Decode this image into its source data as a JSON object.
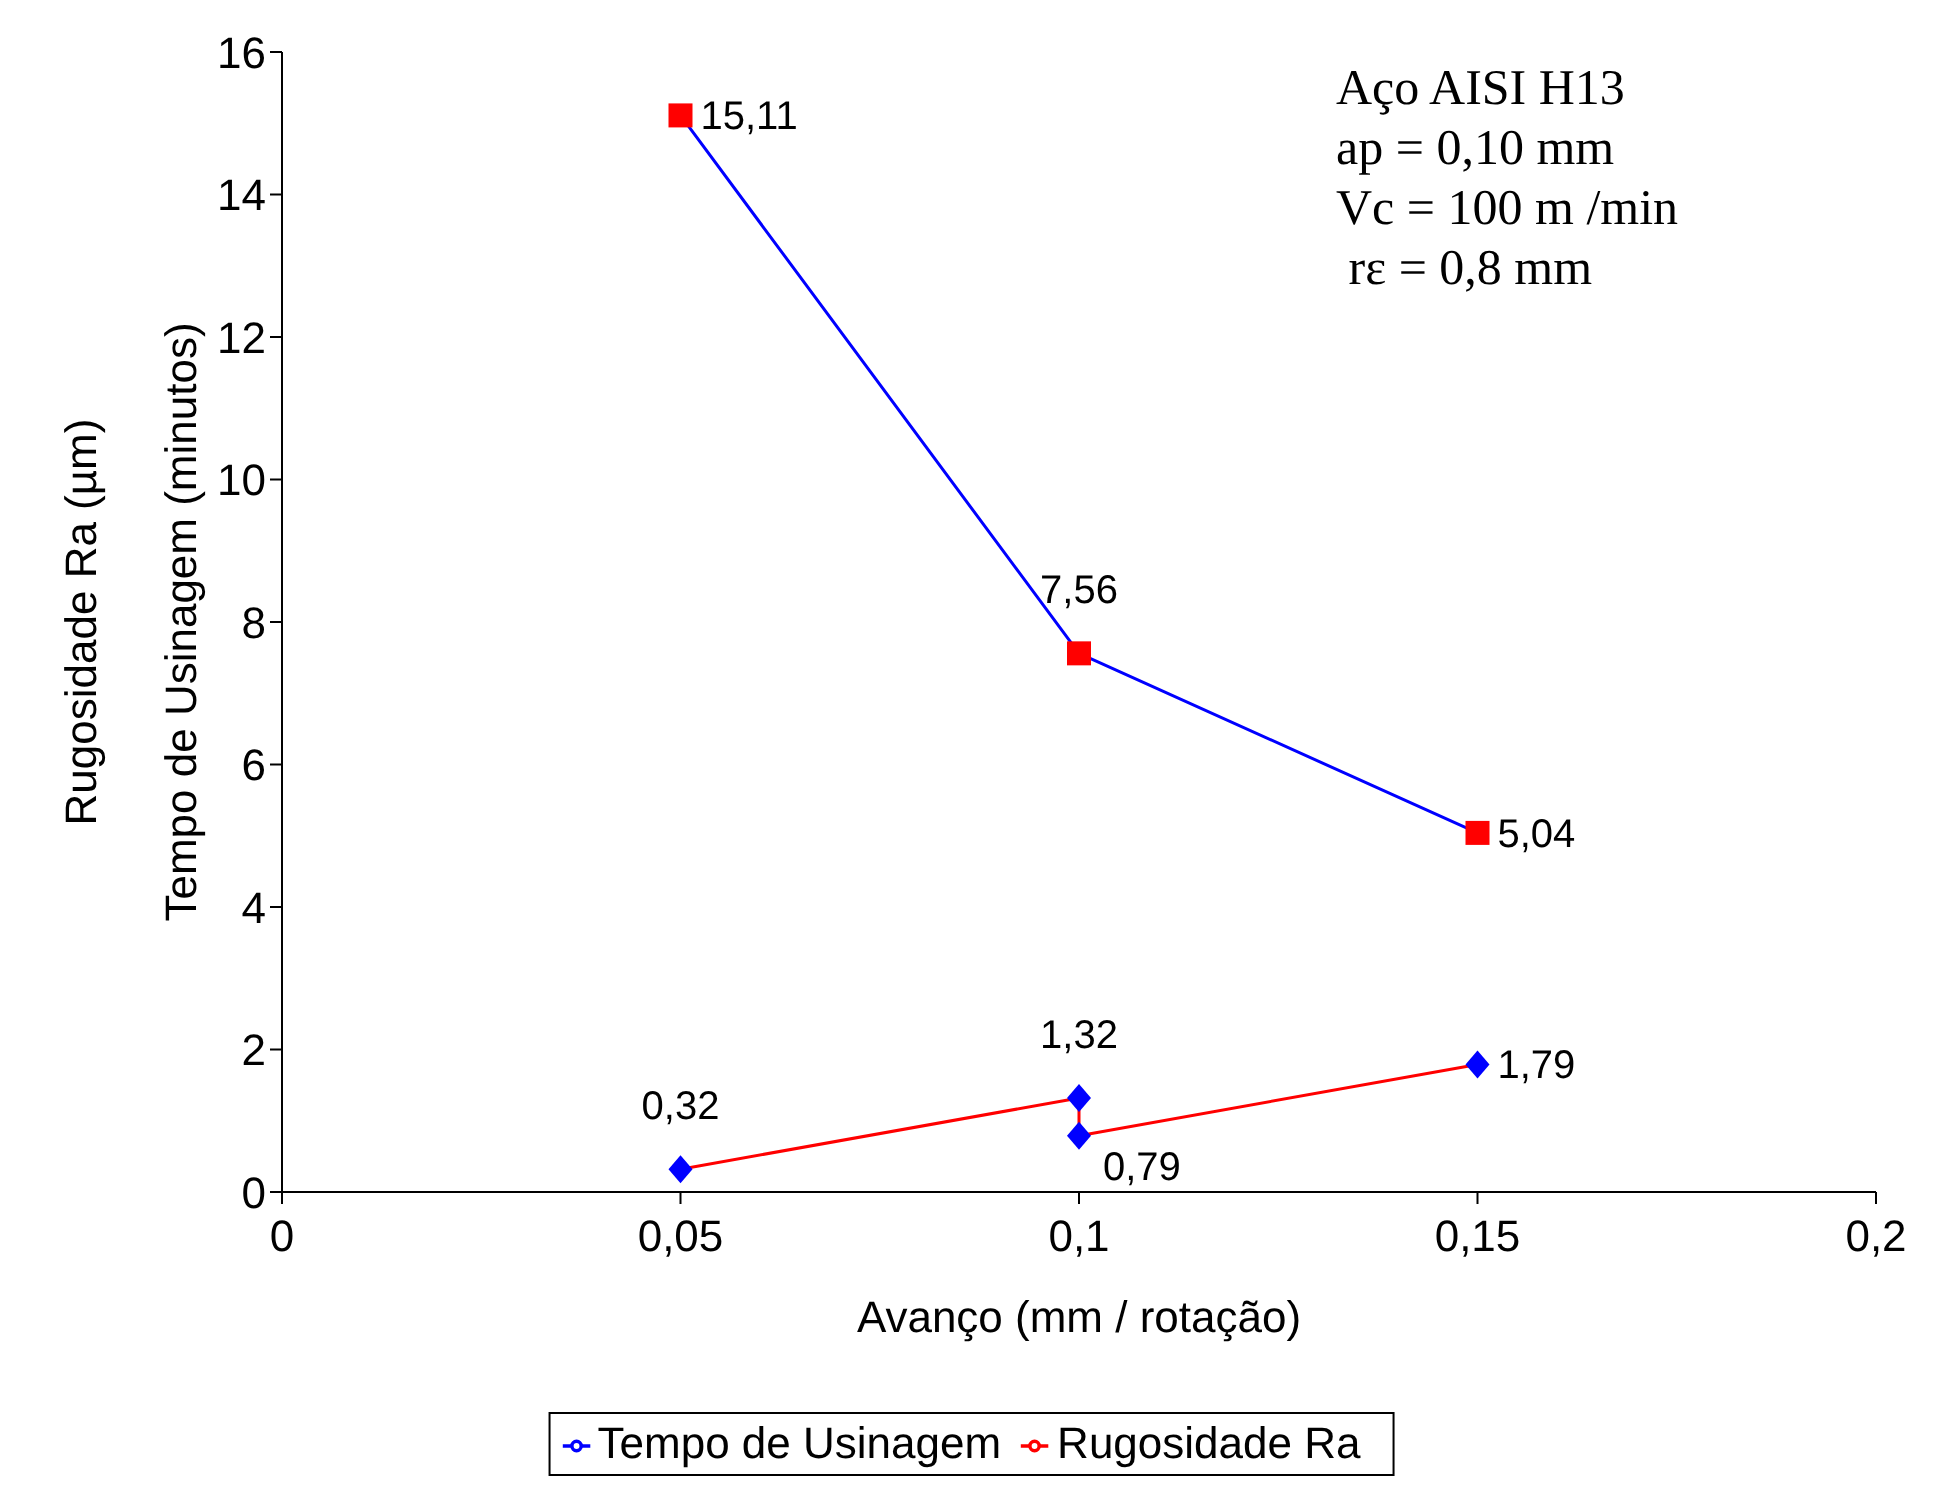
{
  "chart_data": {
    "type": "line",
    "xlabel": "Avanço (mm / rotação)",
    "ylabel": "Rugosidade Ra (µm)\nTempo de Usinagem (minutos)",
    "xlim": [
      0,
      0.2
    ],
    "xticks": [
      0,
      {
        "value": 0.05,
        "label": "0,05"
      },
      {
        "value": 0.1,
        "label": "0,1"
      },
      {
        "value": 0.15,
        "label": "0,15"
      },
      {
        "value": 0.2,
        "label": "0,2"
      }
    ],
    "ylim": [
      0,
      16
    ],
    "yticks": [
      0,
      2,
      4,
      6,
      8,
      10,
      12,
      14,
      16
    ],
    "grid": false,
    "legend": "bottom",
    "line_style": "solid",
    "series": [
      {
        "name": "Tempo de Usinagem",
        "color": "#0000ff",
        "colors": [
          "#ff0000",
          "#ff0000",
          "#ff0000"
        ],
        "marker": "square",
        "x": [
          0.05,
          0.1,
          0.15
        ],
        "values": [
          15.11,
          7.56,
          5.04
        ],
        "value_labels": [
          "15,11",
          "7,56",
          "5,04"
        ]
      },
      {
        "name": "Rugosidade Ra",
        "color": "#ff0000",
        "colors": [
          "#0000ff",
          "#0000ff",
          "#0000ff",
          "#0000ff"
        ],
        "marker": "diamond",
        "x": [
          0.05,
          0.1,
          0.1,
          0.15
        ],
        "values": [
          0.32,
          1.32,
          0.79,
          1.79
        ],
        "value_labels": [
          "0,32",
          "1,32",
          "0,79",
          "1,79"
        ]
      }
    ],
    "annotations": [
      "Aço AISI H13",
      "ap = 0,10 mm",
      "Vc = 100 m /min",
      " rε = 0,8 mm"
    ]
  }
}
